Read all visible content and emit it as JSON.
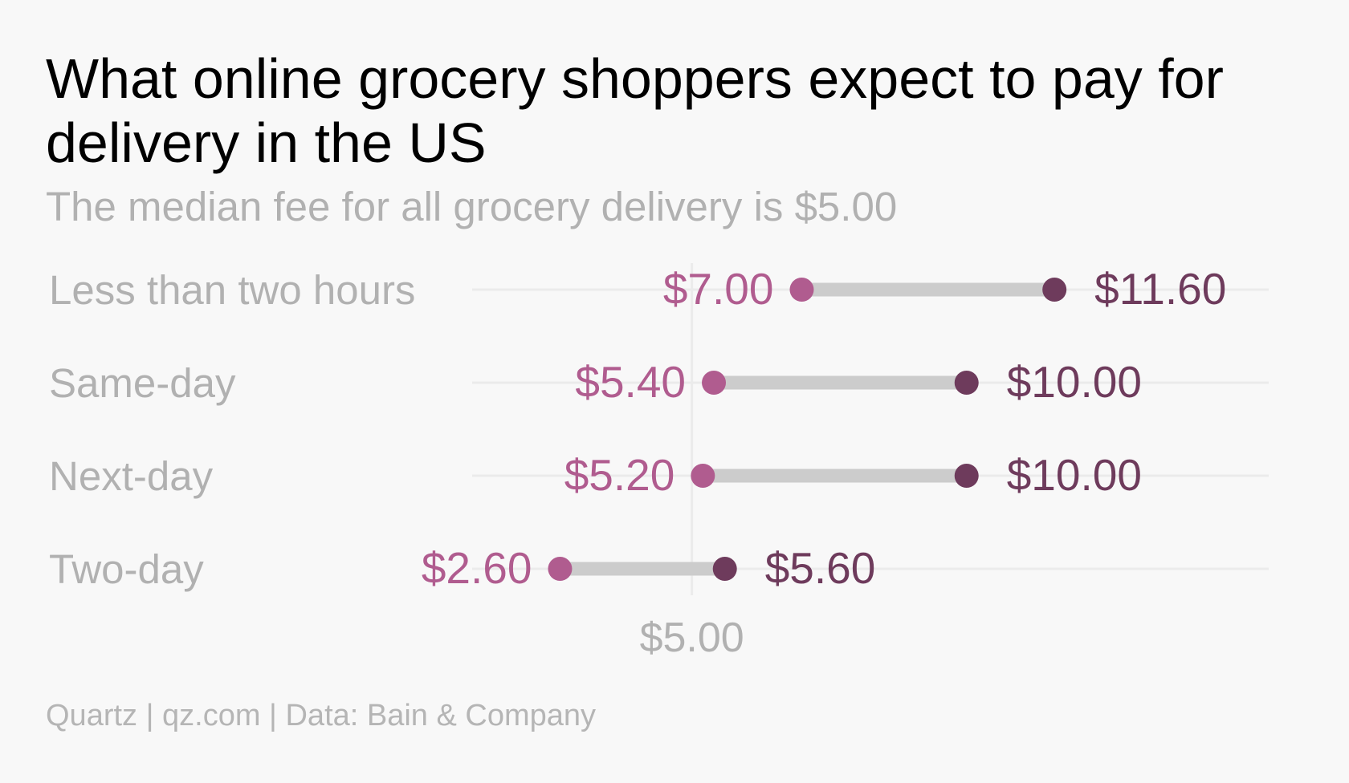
{
  "title": "What online grocery shoppers expect to pay for delivery in the US",
  "subtitle": "The median fee for all grocery delivery is $5.00",
  "source": "Quartz | qz.com | Data: Bain & Company",
  "colors": {
    "background": "#f8f8f8",
    "low_point": "#b05c8f",
    "high_point": "#6e3b5c",
    "connector": "#cccccc",
    "gridline": "#ebebeb",
    "label_gray": "#b1b1b1"
  },
  "chart_data": {
    "type": "dumbbell",
    "categories": [
      "Less than two hours",
      "Same-day",
      "Next-day",
      "Two-day"
    ],
    "series": [
      {
        "values": [
          7.0,
          5.4,
          5.2,
          2.6
        ],
        "labels": [
          "$7.00",
          "$5.40",
          "$5.20",
          "$2.60"
        ]
      },
      {
        "values": [
          11.6,
          10.0,
          10.0,
          5.6
        ],
        "labels": [
          "$11.60",
          "$10.00",
          "$10.00",
          "$5.60"
        ]
      }
    ],
    "x_reference": {
      "value": 5.0,
      "label": "$5.00"
    },
    "xlim": [
      1.0,
      15.5
    ],
    "grid": true
  }
}
